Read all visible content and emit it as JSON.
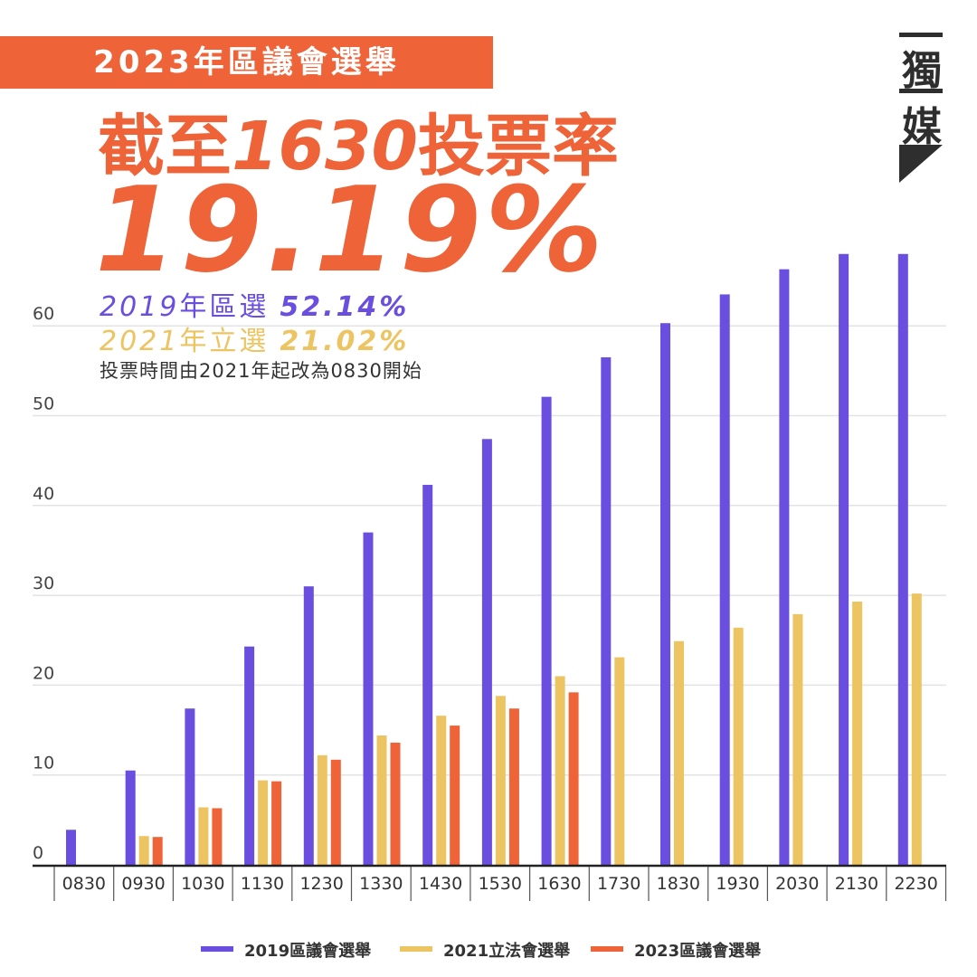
{
  "banner": "2023年區議會選舉",
  "headline": {
    "prefix": "截至",
    "time": "1630",
    "suffix": "投票率"
  },
  "rate": "19.19%",
  "comparison": [
    {
      "year": "2019",
      "label": "年區選",
      "value": "52.14%",
      "color": "#6a4ee0"
    },
    {
      "year": "2021",
      "label": "年立選",
      "value": "21.02%",
      "color": "#ecc462"
    }
  ],
  "note": "投票時間由2021年起改為0830開始",
  "logo": {
    "char1": "獨",
    "char2": "媒"
  },
  "chart_data": {
    "type": "bar",
    "categories": [
      "0830",
      "0930",
      "1030",
      "1130",
      "1230",
      "1330",
      "1430",
      "1530",
      "1630",
      "1730",
      "1830",
      "1930",
      "2030",
      "2130",
      "2230"
    ],
    "series": [
      {
        "name": "2019區議會選舉",
        "color": "#6a4ee0",
        "values": [
          3.9,
          10.5,
          17.4,
          24.3,
          31.0,
          37.0,
          42.3,
          47.4,
          52.1,
          56.5,
          60.3,
          63.5,
          66.3,
          68.0,
          68.0
        ]
      },
      {
        "name": "2021立法會選舉",
        "color": "#ecc462",
        "values": [
          null,
          3.2,
          6.4,
          9.4,
          12.2,
          14.4,
          16.6,
          18.8,
          21.0,
          23.1,
          24.9,
          26.4,
          27.9,
          29.3,
          30.2
        ]
      },
      {
        "name": "2023區議會選舉",
        "color": "#ee6337",
        "values": [
          null,
          3.1,
          6.3,
          9.3,
          11.7,
          13.6,
          15.5,
          17.4,
          19.2,
          null,
          null,
          null,
          null,
          null,
          null
        ]
      }
    ],
    "yticks": [
      0,
      10,
      20,
      30,
      40,
      50,
      60
    ],
    "ylim": [
      0,
      70
    ],
    "grid": true,
    "legend": "bottom"
  }
}
